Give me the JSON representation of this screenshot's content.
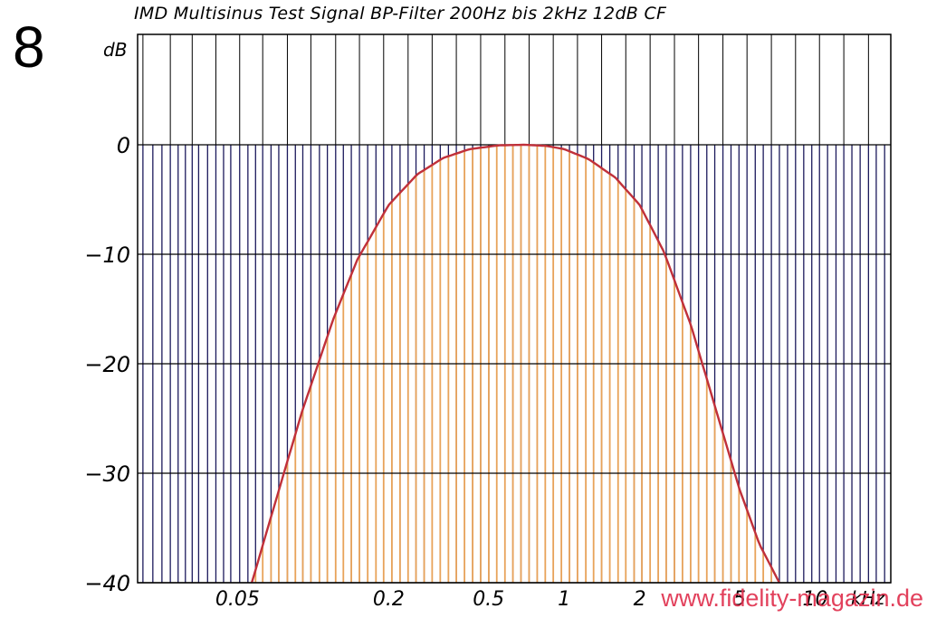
{
  "figure_number": "8",
  "watermark": "www.fidelity-magazin.de",
  "chart_data": {
    "type": "line",
    "title": "IMD Multisinus Test Signal BP-Filter 200Hz bis 2kHz 12dB CF",
    "ylabel": "dB",
    "xlabel": "kHz",
    "x_scale": "log",
    "xlim": [
      0.02,
      20
    ],
    "ylim": [
      -40,
      10
    ],
    "grid": true,
    "y_ticks": [
      0,
      -10,
      -20,
      -30,
      -40
    ],
    "y_tick_labels": [
      "0",
      "−10",
      "−20",
      "−30",
      "−40"
    ],
    "x_ticks": [
      0.05,
      0.2,
      0.5,
      1,
      2,
      5,
      10
    ],
    "x_tick_labels": [
      "0.05",
      "0.2",
      "0.5",
      "1",
      "2",
      "5",
      "10"
    ],
    "colors": {
      "response_curve": "#c0303a",
      "test_tones": "#e8a35a",
      "tone_lines": "#1c1a5c",
      "frame": "#000000"
    },
    "series": [
      {
        "kind": "curve",
        "x": [
          0.057,
          0.07,
          0.09,
          0.12,
          0.15,
          0.2,
          0.26,
          0.33,
          0.42,
          0.55,
          0.7,
          0.85,
          1.0,
          1.25,
          1.6,
          2.0,
          2.5,
          3.2,
          4.0,
          5.0,
          6.0,
          7.2
        ],
        "y": [
          -40,
          -33,
          -24.5,
          -16,
          -10.5,
          -5.5,
          -2.7,
          -1.2,
          -0.4,
          -0.05,
          0,
          -0.1,
          -0.4,
          -1.3,
          -3.0,
          -5.5,
          -9.8,
          -16.5,
          -24,
          -31.5,
          -36.5,
          -40
        ]
      },
      {
        "kind": "tones",
        "x": [
          0.021,
          0.023,
          0.025,
          0.027,
          0.029,
          0.031,
          0.033,
          0.035,
          0.038,
          0.041,
          0.044,
          0.047,
          0.051,
          0.055,
          0.059,
          0.063,
          0.068,
          0.073,
          0.079,
          0.085,
          0.091,
          0.098,
          0.106,
          0.114,
          0.123,
          0.132,
          0.142,
          0.153,
          0.165,
          0.178,
          0.191,
          0.206,
          0.222,
          0.239,
          0.257,
          0.277,
          0.298,
          0.321,
          0.346,
          0.372,
          0.401,
          0.432,
          0.465,
          0.501,
          0.539,
          0.581,
          0.625,
          0.673,
          0.725,
          0.781,
          0.841,
          0.905,
          0.975,
          1.05,
          1.13,
          1.22,
          1.31,
          1.41,
          1.52,
          1.64,
          1.76,
          1.9,
          2.04,
          2.2,
          2.37,
          2.55,
          2.75,
          2.96,
          3.19,
          3.43,
          3.7,
          3.98,
          4.29,
          4.62,
          4.97,
          5.35,
          5.77,
          6.21,
          6.69,
          7.2,
          7.76,
          8.35,
          9.0,
          9.69,
          10.4,
          11.2,
          12.1,
          13.0,
          14.0,
          15.1,
          16.3,
          17.5,
          18.9
        ]
      }
    ]
  }
}
